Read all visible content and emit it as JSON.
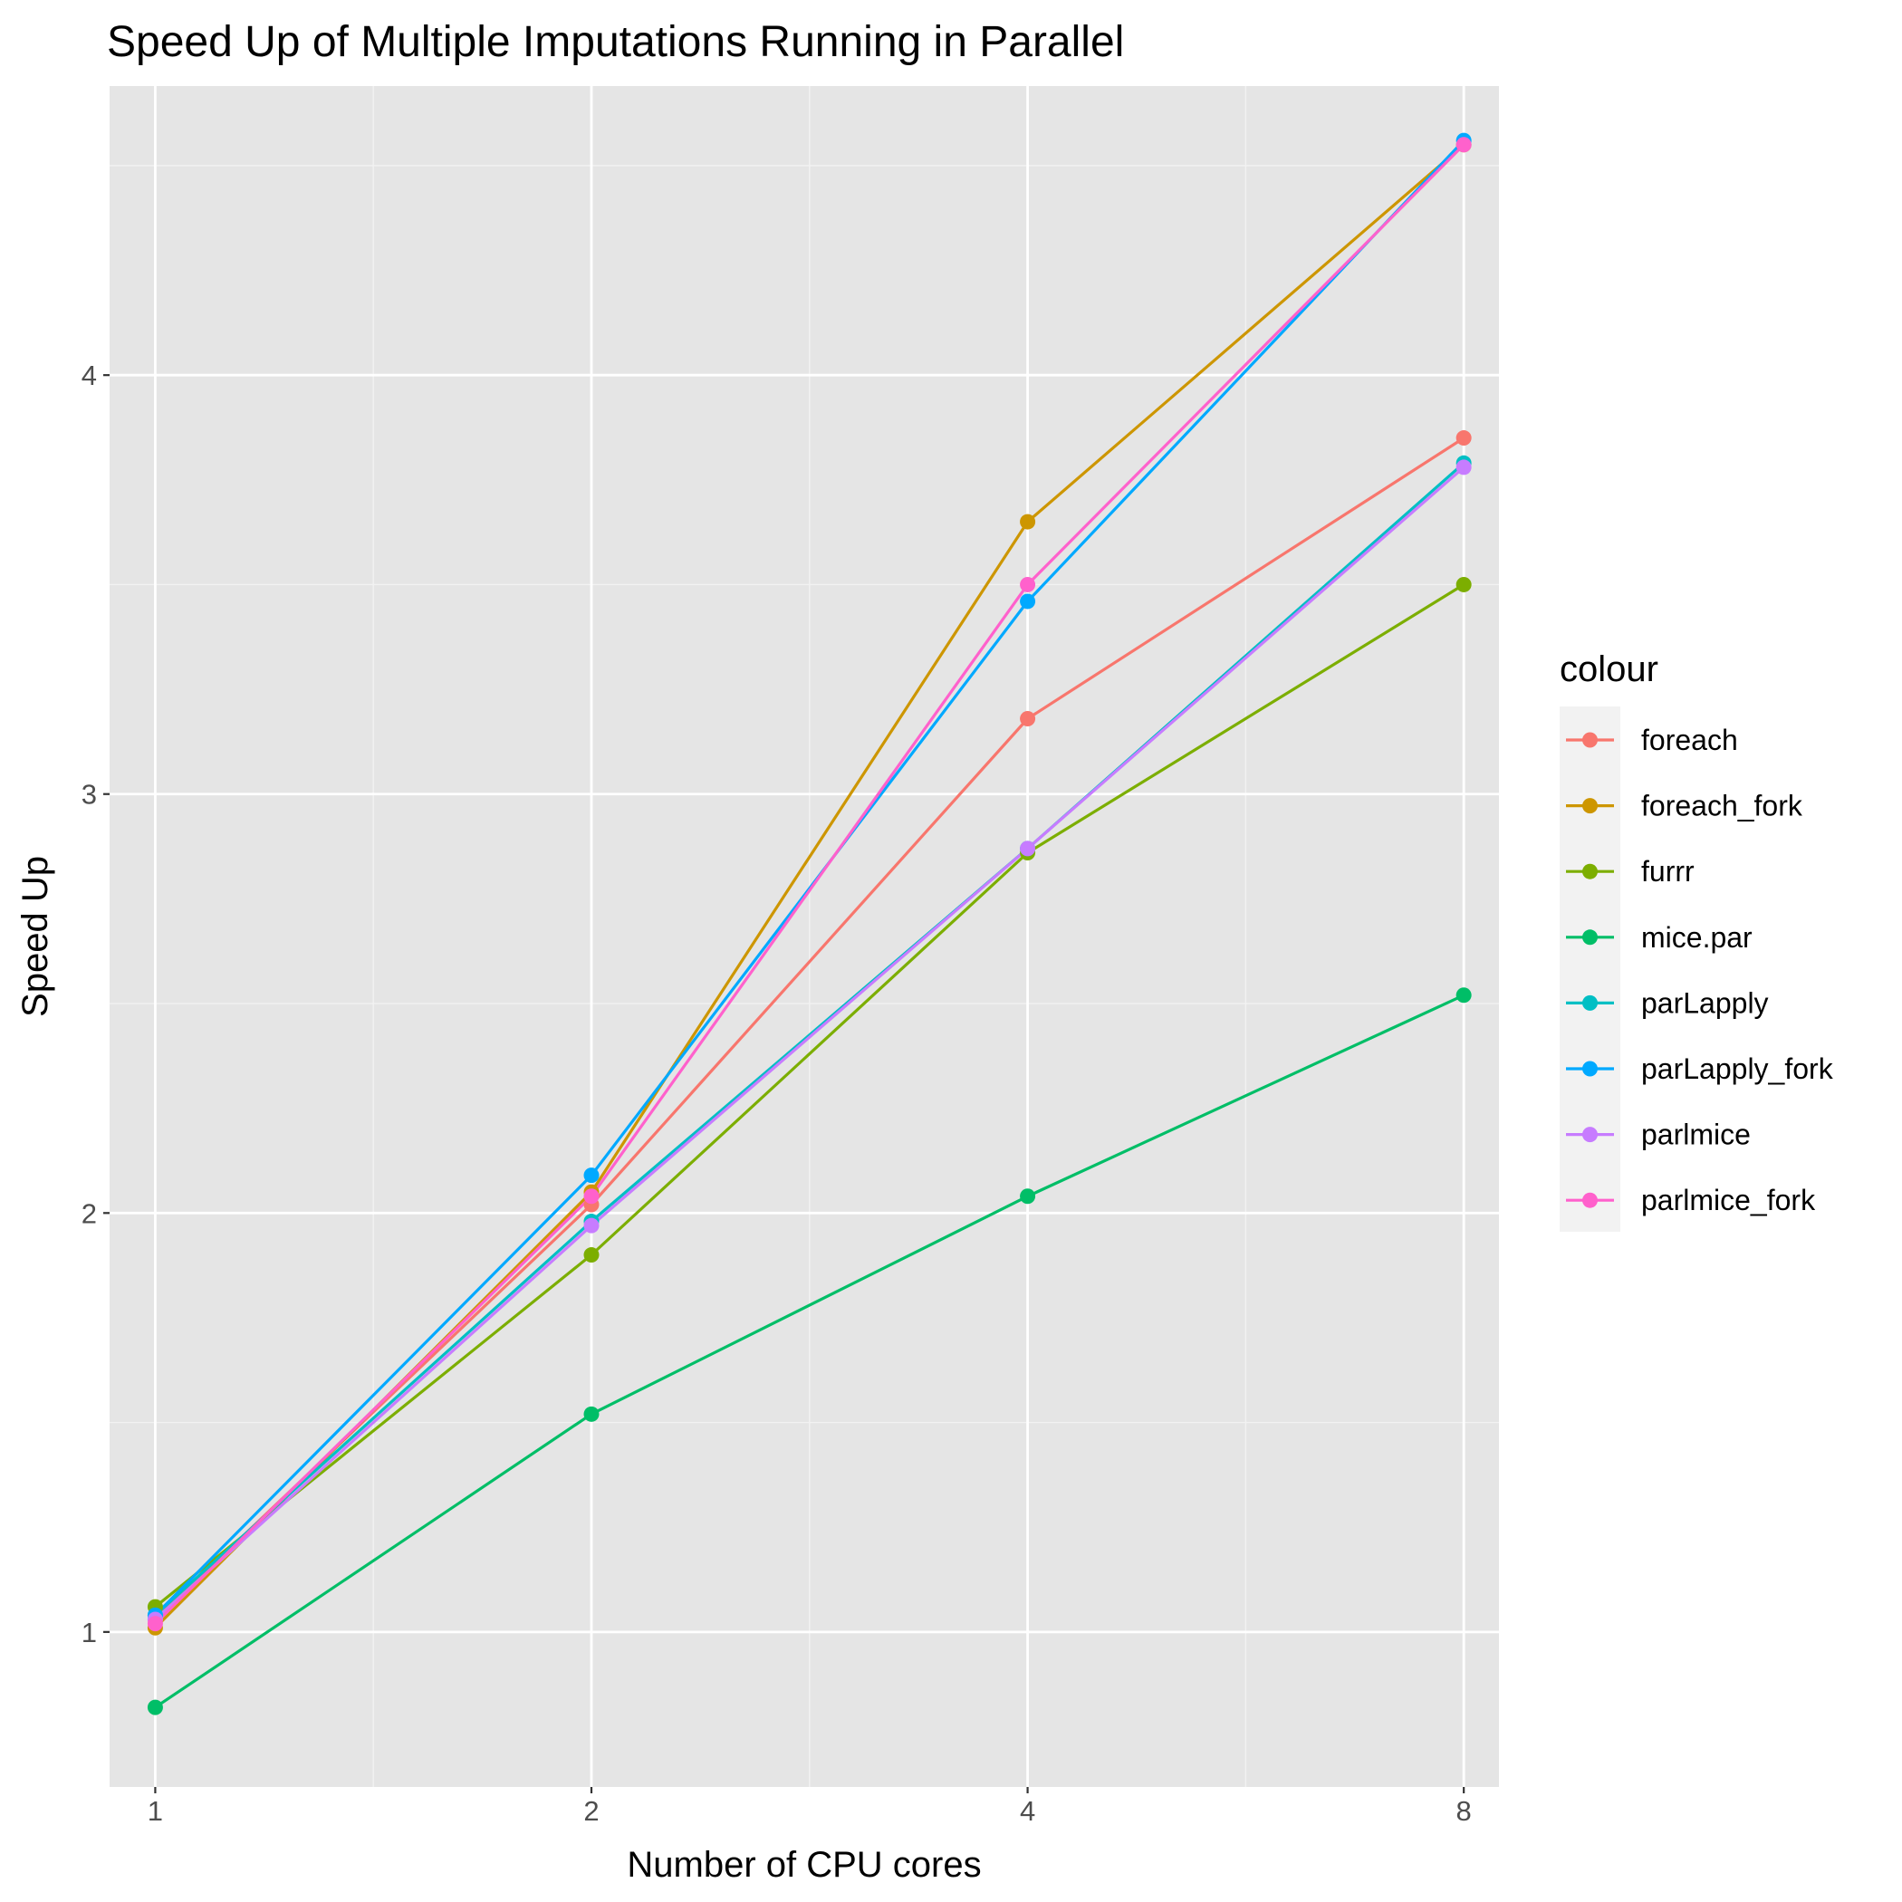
{
  "chart_data": {
    "type": "line",
    "title": "Speed Up of Multiple Imputations Running in Parallel",
    "xlabel": "Number of CPU cores",
    "ylabel": "Speed Up",
    "x_scale": "log2",
    "x": [
      1,
      2,
      4,
      8
    ],
    "x_ticks": [
      "1",
      "2",
      "4",
      "8"
    ],
    "y_ticks": [
      "1",
      "2",
      "3",
      "4"
    ],
    "xlim": [
      0.93,
      8.46
    ],
    "ylim": [
      0.63,
      4.69
    ],
    "grid": true,
    "legend_title": "colour",
    "legend_position": "right",
    "series": [
      {
        "name": "foreach",
        "color": "#F8766D",
        "values": [
          1.03,
          2.02,
          3.18,
          3.85
        ]
      },
      {
        "name": "foreach_fork",
        "color": "#CD9600",
        "values": [
          1.01,
          2.05,
          3.65,
          4.55
        ]
      },
      {
        "name": "furrr",
        "color": "#7CAE00",
        "values": [
          1.06,
          1.9,
          2.86,
          3.5
        ]
      },
      {
        "name": "mice.par",
        "color": "#00BE67",
        "values": [
          0.82,
          1.52,
          2.04,
          2.52
        ]
      },
      {
        "name": "parLapply",
        "color": "#00BFC4",
        "values": [
          1.04,
          1.98,
          2.87,
          3.79
        ]
      },
      {
        "name": "parLapply_fork",
        "color": "#00A9FF",
        "values": [
          1.04,
          2.09,
          3.46,
          4.56
        ]
      },
      {
        "name": "parlmice",
        "color": "#C77CFF",
        "values": [
          1.03,
          1.97,
          2.87,
          3.78
        ]
      },
      {
        "name": "parlmice_fork",
        "color": "#FF61CC",
        "values": [
          1.02,
          2.04,
          3.5,
          4.55
        ]
      }
    ]
  }
}
